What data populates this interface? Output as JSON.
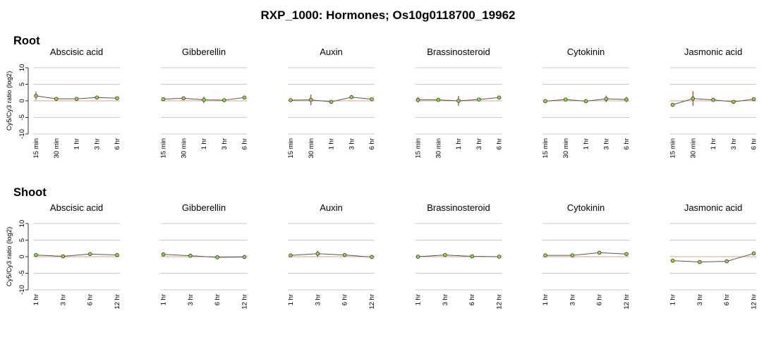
{
  "figure_title": "RXP_1000: Hormones; Os10g0118700_19962",
  "colors": {
    "grid": "#c8c8c8",
    "zero_line": "#d9a37a",
    "series_line": "#555555",
    "point_fill": "#9bd04a",
    "point_stroke": "#333333",
    "error_bar": "#7a1f1f",
    "text": "#000000"
  },
  "chart_data": [
    {
      "type": "line",
      "section": "Root",
      "ylabel": "Cy5/Cy3 ratio (log2)",
      "yticks": [
        10,
        5,
        0,
        -5,
        -10
      ],
      "ylim": [
        -10,
        10
      ],
      "grid": true,
      "x": [
        "15 min",
        "30 min",
        "1 hr",
        "3 hr",
        "6 hr"
      ],
      "panels": [
        {
          "title": "Abscisic acid",
          "values": [
            1.5,
            0.6,
            0.6,
            1.0,
            0.8
          ],
          "errors": [
            1.2,
            0.4,
            0.3,
            0.4,
            0.3
          ]
        },
        {
          "title": "Gibberellin",
          "values": [
            0.5,
            0.8,
            0.3,
            0.2,
            1.0
          ],
          "errors": [
            0.3,
            0.3,
            1.0,
            0.3,
            0.3
          ]
        },
        {
          "title": "Auxin",
          "values": [
            0.2,
            0.3,
            -0.3,
            1.1,
            0.5
          ],
          "errors": [
            0.2,
            1.6,
            0.3,
            0.4,
            0.3
          ]
        },
        {
          "title": "Brassinosteroid",
          "values": [
            0.3,
            0.3,
            0.0,
            0.4,
            1.0
          ],
          "errors": [
            0.8,
            0.2,
            1.5,
            0.3,
            0.3
          ]
        },
        {
          "title": "Cytokinin",
          "values": [
            -0.1,
            0.4,
            -0.1,
            0.6,
            0.4
          ],
          "errors": [
            0.2,
            0.3,
            0.2,
            1.0,
            0.8
          ]
        },
        {
          "title": "Jasmonic acid",
          "values": [
            -1.2,
            0.7,
            0.3,
            -0.3,
            0.5
          ],
          "errors": [
            0.3,
            2.2,
            0.3,
            0.3,
            0.3
          ]
        }
      ]
    },
    {
      "type": "line",
      "section": "Shoot",
      "ylabel": "Cy5/Cy3 ratio (log2)",
      "yticks": [
        10,
        5,
        0,
        -5,
        -10
      ],
      "ylim": [
        -10,
        10
      ],
      "grid": true,
      "x": [
        "1 hr",
        "3 hr",
        "6 hr",
        "12 hr"
      ],
      "panels": [
        {
          "title": "Abscisic acid",
          "values": [
            0.5,
            0.1,
            0.8,
            0.5
          ],
          "errors": [
            0.3,
            0.3,
            0.5,
            0.3
          ]
        },
        {
          "title": "Gibberellin",
          "values": [
            0.7,
            0.3,
            -0.2,
            -0.1
          ],
          "errors": [
            0.3,
            0.3,
            0.2,
            0.2
          ]
        },
        {
          "title": "Auxin",
          "values": [
            0.4,
            0.9,
            0.5,
            -0.1
          ],
          "errors": [
            0.3,
            0.9,
            0.5,
            0.2
          ]
        },
        {
          "title": "Brassinosteroid",
          "values": [
            0.0,
            0.5,
            0.1,
            0.0
          ],
          "errors": [
            0.2,
            0.4,
            0.2,
            0.2
          ]
        },
        {
          "title": "Cytokinin",
          "values": [
            0.4,
            0.4,
            1.2,
            0.8
          ],
          "errors": [
            0.3,
            0.3,
            0.3,
            0.3
          ]
        },
        {
          "title": "Jasmonic acid",
          "values": [
            -1.2,
            -1.6,
            -1.4,
            1.0
          ],
          "errors": [
            0.3,
            0.3,
            0.3,
            0.5
          ]
        }
      ]
    }
  ]
}
